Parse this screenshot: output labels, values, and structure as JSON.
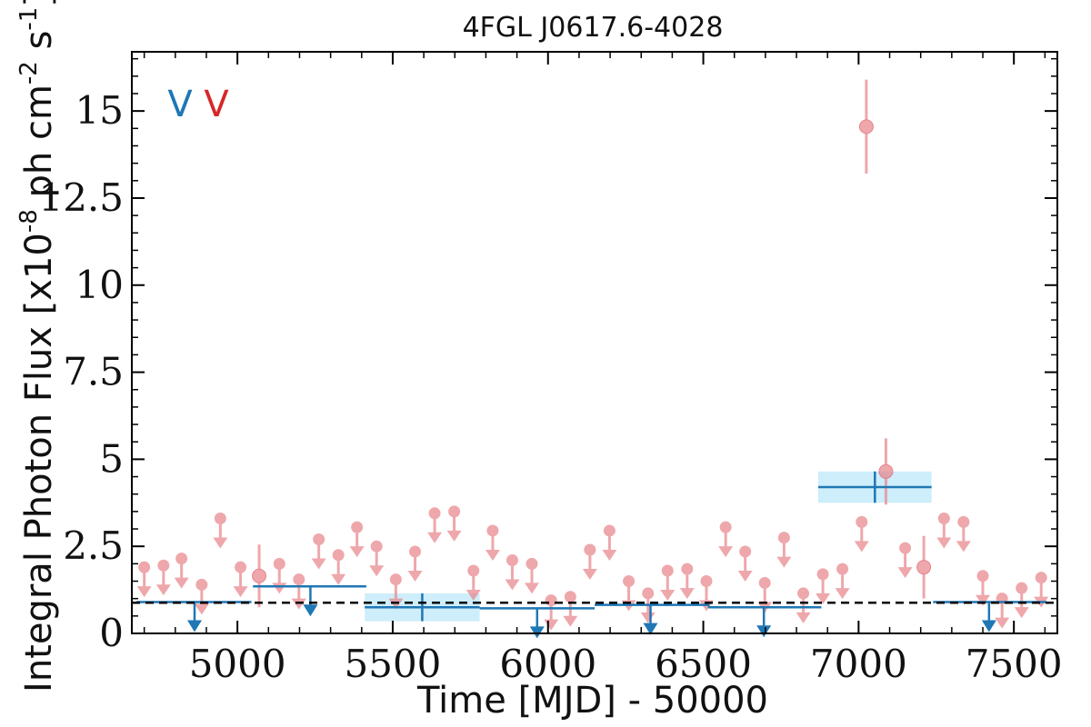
{
  "chart_data": {
    "type": "scatter",
    "title": "4FGL J0617.6-4028",
    "xlabel": "Time [MJD] - 50000",
    "ylabel": "Integral Photon Flux [x10^-8 ph cm^-2 s^-1]",
    "xlim": [
      4660,
      7640
    ],
    "ylim": [
      0,
      16.7
    ],
    "x_ticks": [
      5000,
      5500,
      6000,
      6500,
      7000,
      7500
    ],
    "x_tick_labels": [
      "5000",
      "5500",
      "6000",
      "6500",
      "7000",
      "7500"
    ],
    "y_ticks": [
      0,
      2.5,
      5,
      7.5,
      10,
      12.5,
      15
    ],
    "y_tick_labels": [
      "0",
      "2.5",
      "5",
      "7.5",
      "10",
      "12.5",
      "15"
    ],
    "legend": {
      "placement": "top-left",
      "entries": [
        {
          "label": "V",
          "color": "#1f77b4"
        },
        {
          "label": "V",
          "color": "#d62728"
        }
      ]
    },
    "reference_line": {
      "y": 0.88,
      "style": "dashed",
      "color": "#000000"
    },
    "colors": {
      "fine_series": "#e8868c",
      "coarse_series": "#1f77b4",
      "coarse_uncertainty_band": "#cdeefa"
    },
    "series": [
      {
        "name": "",
        "color": "#e8868c",
        "binning": "fine",
        "detections": [
          {
            "x": 5070,
            "y": 1.65,
            "err": 0.9
          },
          {
            "x": 7025,
            "y": 14.55,
            "err": 1.35
          },
          {
            "x": 7088,
            "y": 4.65,
            "err": 0.95
          },
          {
            "x": 7210,
            "y": 1.9,
            "err": 0.9
          }
        ],
        "upper_limits": [
          {
            "x": 4700,
            "y": 1.9
          },
          {
            "x": 4762,
            "y": 1.95
          },
          {
            "x": 4820,
            "y": 2.15
          },
          {
            "x": 4885,
            "y": 1.4
          },
          {
            "x": 4945,
            "y": 3.3
          },
          {
            "x": 5010,
            "y": 1.9
          },
          {
            "x": 5135,
            "y": 2.0
          },
          {
            "x": 5198,
            "y": 1.55
          },
          {
            "x": 5262,
            "y": 2.7
          },
          {
            "x": 5325,
            "y": 2.25
          },
          {
            "x": 5385,
            "y": 3.05
          },
          {
            "x": 5448,
            "y": 2.5
          },
          {
            "x": 5510,
            "y": 1.55
          },
          {
            "x": 5572,
            "y": 2.35
          },
          {
            "x": 5635,
            "y": 3.45
          },
          {
            "x": 5698,
            "y": 3.5
          },
          {
            "x": 5760,
            "y": 1.8
          },
          {
            "x": 5822,
            "y": 2.95
          },
          {
            "x": 5885,
            "y": 2.1
          },
          {
            "x": 5948,
            "y": 2.0
          },
          {
            "x": 6010,
            "y": 0.95
          },
          {
            "x": 6072,
            "y": 1.05
          },
          {
            "x": 6135,
            "y": 2.4
          },
          {
            "x": 6198,
            "y": 2.95
          },
          {
            "x": 6260,
            "y": 1.5
          },
          {
            "x": 6322,
            "y": 1.15
          },
          {
            "x": 6385,
            "y": 1.8
          },
          {
            "x": 6448,
            "y": 1.85
          },
          {
            "x": 6510,
            "y": 1.5
          },
          {
            "x": 6572,
            "y": 3.05
          },
          {
            "x": 6635,
            "y": 2.35
          },
          {
            "x": 6698,
            "y": 1.45
          },
          {
            "x": 6760,
            "y": 2.75
          },
          {
            "x": 6822,
            "y": 1.15
          },
          {
            "x": 6885,
            "y": 1.7
          },
          {
            "x": 6948,
            "y": 1.85
          },
          {
            "x": 7010,
            "y": 3.2
          },
          {
            "x": 7150,
            "y": 2.45
          },
          {
            "x": 7275,
            "y": 3.3
          },
          {
            "x": 7338,
            "y": 3.2
          },
          {
            "x": 7400,
            "y": 1.65
          },
          {
            "x": 7462,
            "y": 1.0
          },
          {
            "x": 7525,
            "y": 1.3
          },
          {
            "x": 7588,
            "y": 1.6
          }
        ]
      },
      {
        "name": "",
        "color": "#1f77b4",
        "binning": "coarse",
        "detections": [
          {
            "x0": 5410,
            "x1": 5780,
            "y": 0.75,
            "err": 0.4
          },
          {
            "x0": 6870,
            "x1": 7235,
            "y": 4.2,
            "err": 0.45
          }
        ],
        "upper_limits": [
          {
            "x0": 4675,
            "x1": 5045,
            "y": 0.9,
            "arrow_x": 4862
          },
          {
            "x0": 5050,
            "x1": 5415,
            "y": 1.35,
            "arrow_x": 5235
          },
          {
            "x0": 5780,
            "x1": 6150,
            "y": 0.72,
            "arrow_x": 5965
          },
          {
            "x0": 6150,
            "x1": 6520,
            "y": 0.82,
            "arrow_x": 6330
          },
          {
            "x0": 6515,
            "x1": 6880,
            "y": 0.75,
            "arrow_x": 6695
          },
          {
            "x0": 7240,
            "x1": 7605,
            "y": 0.9,
            "arrow_x": 7420
          }
        ]
      }
    ]
  }
}
